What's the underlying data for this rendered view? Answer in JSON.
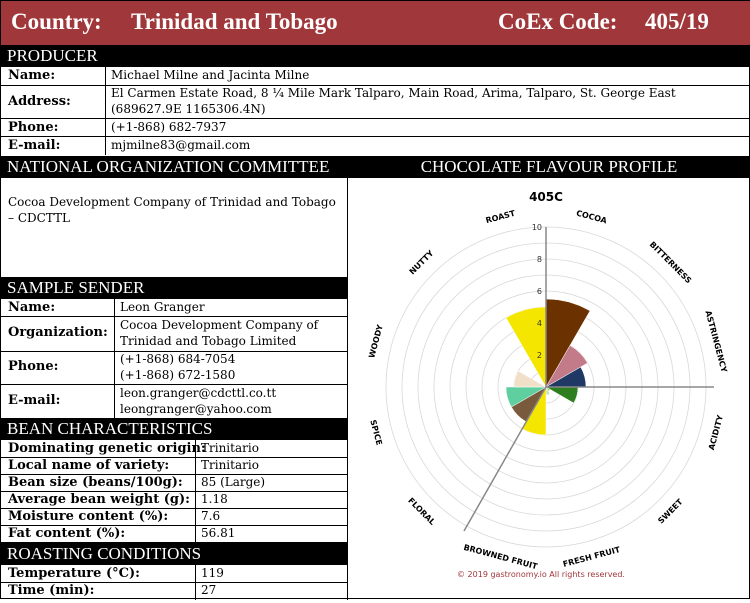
{
  "header": {
    "country_label": "Country:",
    "country_value": "Trinidad and Tobago",
    "coex_label": "CoEx Code:",
    "coex_value": "405/19"
  },
  "producer": {
    "heading": "PRODUCER",
    "name_label": "Name:",
    "name_value": "Michael Milne and Jacinta Milne",
    "address_label": "Address:",
    "address_line1": "El Carmen Estate Road, 8 ¼ Mile Mark Talparo, Main Road, Arima, Talparo, St. George East",
    "address_line2": "(689627.9E    1165306.4N)",
    "phone_label": "Phone:",
    "phone_value": "(+1-868) 682-7937",
    "email_label": "E-mail:",
    "email_value": "mjmilne83@gmail.com"
  },
  "noc": {
    "heading": "NATIONAL ORGANIZATION COMMITTEE",
    "line1": "Cocoa Development Company of Trinidad and Tobago",
    "line2": "– CDCTTL"
  },
  "sender": {
    "heading": "SAMPLE SENDER",
    "name_label": "Name:",
    "name_value": "Leon Granger",
    "org_label": "Organization:",
    "org_line1": "Cocoa Development Company of",
    "org_line2": "Trinidad and Tobago Limited",
    "phone_label": "Phone:",
    "phone_line1": "(+1-868) 684-7054",
    "phone_line2": "(+1-868) 672-1580",
    "email_label": "E-mail:",
    "email_line1": "leon.granger@cdcttl.co.tt",
    "email_line2": "leongranger@yahoo.com"
  },
  "bean": {
    "heading": "BEAN CHARACTERISTICS",
    "rows": [
      {
        "label": "Dominating genetic origin:",
        "value": "Trinitario"
      },
      {
        "label": "Local name of variety:",
        "value": "Trinitario"
      },
      {
        "label": "Bean size (beans/100g):",
        "value": "85 (Large)"
      },
      {
        "label": "Average bean weight (g):",
        "value": "1.18"
      },
      {
        "label": "Moisture content (%):",
        "value": "7.6"
      },
      {
        "label": "Fat content (%):",
        "value": "56.81"
      }
    ]
  },
  "roasting": {
    "heading": "ROASTING CONDITIONS",
    "rows": [
      {
        "label": "Temperature (°C):",
        "value": "119"
      },
      {
        "label": "Time (min):",
        "value": "27"
      }
    ]
  },
  "flavour": {
    "heading": "CHOCOLATE FLAVOUR PROFILE",
    "copyright": "© 2019 gastronomy.io All rights reserved."
  },
  "chart_data": {
    "type": "polar-area",
    "title": "405C",
    "rlim": [
      0,
      10
    ],
    "radial_ticks": [
      2,
      4,
      6,
      8,
      10
    ],
    "grid": true,
    "categories": [
      "COCOA",
      "BITTERNESS",
      "ASTRINGENCY",
      "ACIDITY",
      "SWEET",
      "FRESH FRUIT",
      "BROWNED FRUIT",
      "FLORAL",
      "SPICE",
      "WOODY",
      "NUTTY",
      "ROAST"
    ],
    "values": [
      5.5,
      3.0,
      2.5,
      2.0,
      0.3,
      0.5,
      3.0,
      2.5,
      2.5,
      2.0,
      0.0,
      5.0
    ],
    "colors": [
      "#6b3200",
      "#c37b8a",
      "#1f3864",
      "#2e7d1e",
      "#9ccc65",
      "#c5e1a5",
      "#f5e600",
      "#7a5a3c",
      "#5fcfa0",
      "#f0e0c8",
      "#b0b0b0",
      "#f5e600"
    ]
  }
}
